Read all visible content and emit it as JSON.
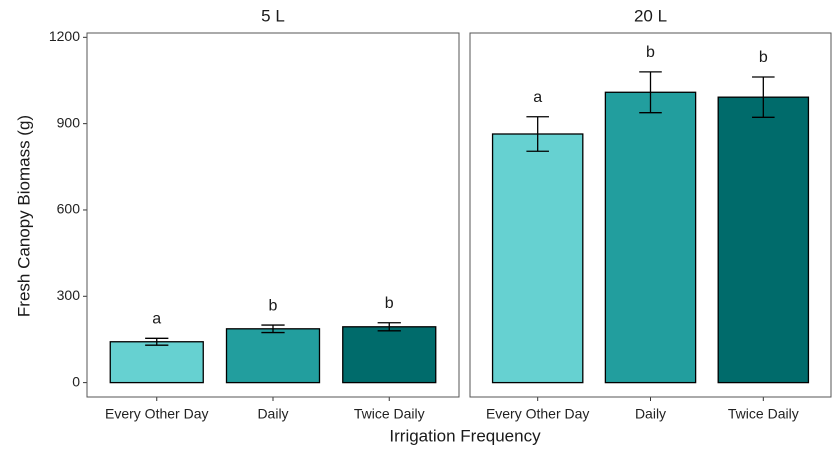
{
  "ylabel": "Fresh Canopy Biomass (g)",
  "xlabel": "Irrigation Frequency",
  "chart_data": [
    {
      "type": "bar",
      "title": "5 L",
      "categories": [
        "Every Other Day",
        "Daily",
        "Twice Daily"
      ],
      "values": [
        142,
        187,
        194
      ],
      "errors": [
        12,
        13,
        14
      ],
      "annotations": [
        "a",
        "b",
        "b"
      ],
      "colors": [
        "#66d1d1",
        "#229e9e",
        "#006b6b"
      ],
      "ylim": [
        -50,
        1215
      ],
      "yticks": [
        0,
        300,
        600,
        900,
        1200
      ]
    },
    {
      "type": "bar",
      "title": "20 L",
      "categories": [
        "Every Other Day",
        "Daily",
        "Twice Daily"
      ],
      "values": [
        864,
        1009,
        992
      ],
      "errors": [
        60,
        71,
        70
      ],
      "annotations": [
        "a",
        "b",
        "b"
      ],
      "colors": [
        "#66d1d1",
        "#229e9e",
        "#006b6b"
      ],
      "ylim": [
        -50,
        1215
      ]
    }
  ]
}
